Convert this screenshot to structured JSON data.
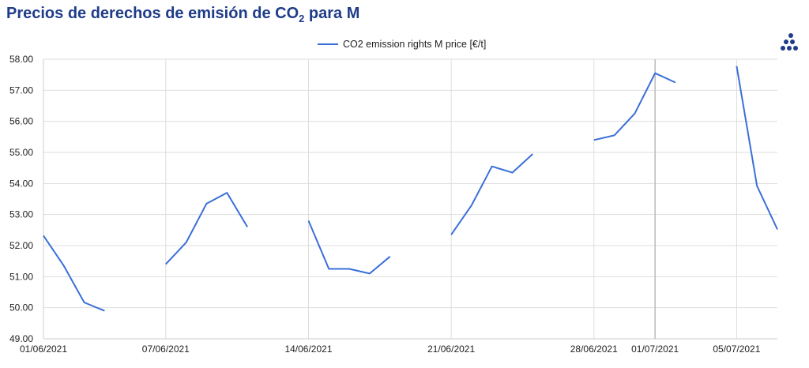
{
  "header": {
    "title_main": "Precios de derechos de emisión de CO",
    "title_sub": "2",
    "title_tail": " para M"
  },
  "colors": {
    "title": "#1f3c88",
    "series": "#3a6fd8",
    "grid": "#dddddd"
  },
  "chart_data": {
    "type": "line",
    "title": "Precios de derechos de emisión de CO2 para M",
    "legend": {
      "position": "top-center"
    },
    "grid": true,
    "ylim": [
      49.0,
      58.0
    ],
    "yticks": [
      "58.00",
      "57.00",
      "56.00",
      "55.00",
      "54.00",
      "53.00",
      "52.00",
      "51.00",
      "50.00",
      "49.00"
    ],
    "xlim": [
      "2021-06-01",
      "2021-07-07"
    ],
    "xticks": [
      {
        "date": "2021-06-01",
        "label": "01/06/2021"
      },
      {
        "date": "2021-06-07",
        "label": "07/06/2021"
      },
      {
        "date": "2021-06-14",
        "label": "14/06/2021"
      },
      {
        "date": "2021-06-21",
        "label": "21/06/2021"
      },
      {
        "date": "2021-06-28",
        "label": "28/06/2021"
      },
      {
        "date": "2021-07-01",
        "label": "01/07/2021"
      },
      {
        "date": "2021-07-05",
        "label": "05/07/2021"
      }
    ],
    "series": [
      {
        "name": "CO2 emission rights M price [€/t]",
        "segments": [
          [
            [
              "2021-06-01",
              52.32
            ],
            [
              "2021-06-02",
              51.35
            ],
            [
              "2021-06-03",
              50.17
            ],
            [
              "2021-06-04",
              49.9
            ]
          ],
          [
            [
              "2021-06-07",
              51.4
            ],
            [
              "2021-06-08",
              52.1
            ],
            [
              "2021-06-09",
              53.35
            ],
            [
              "2021-06-10",
              53.7
            ],
            [
              "2021-06-11",
              52.6
            ]
          ],
          [
            [
              "2021-06-14",
              52.8
            ],
            [
              "2021-06-15",
              51.25
            ],
            [
              "2021-06-16",
              51.25
            ],
            [
              "2021-06-17",
              51.1
            ],
            [
              "2021-06-18",
              51.65
            ]
          ],
          [
            [
              "2021-06-21",
              52.35
            ],
            [
              "2021-06-22",
              53.3
            ],
            [
              "2021-06-23",
              54.55
            ],
            [
              "2021-06-24",
              54.35
            ],
            [
              "2021-06-25",
              54.95
            ]
          ],
          [
            [
              "2021-06-28",
              55.4
            ],
            [
              "2021-06-29",
              55.55
            ],
            [
              "2021-06-30",
              56.25
            ],
            [
              "2021-07-01",
              57.55
            ],
            [
              "2021-07-02",
              57.25
            ]
          ],
          [
            [
              "2021-07-05",
              57.78
            ],
            [
              "2021-07-06",
              53.92
            ],
            [
              "2021-07-07",
              52.52
            ]
          ]
        ]
      }
    ]
  }
}
